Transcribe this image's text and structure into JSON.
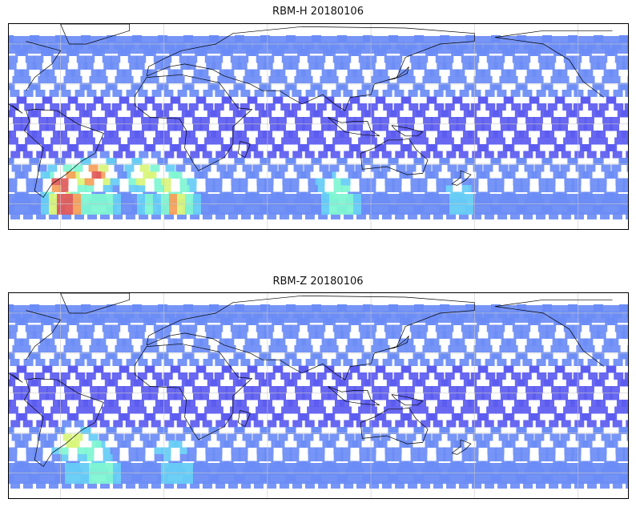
{
  "panels": [
    {
      "title": "RBM-H 20180106",
      "hot_regions": [
        {
          "lon": -58,
          "lat": -42,
          "intensity": 1.0
        },
        {
          "lon": -40,
          "lat": -36,
          "intensity": 0.9
        },
        {
          "lon": 5,
          "lat": -43,
          "intensity": 0.75
        },
        {
          "lon": -10,
          "lat": -36,
          "intensity": 0.7
        },
        {
          "lon": 100,
          "lat": -45,
          "intensity": 0.55
        },
        {
          "lon": 170,
          "lat": -45,
          "intensity": 0.35
        }
      ]
    },
    {
      "title": "RBM-Z 20180106",
      "hot_regions": [
        {
          "lon": -52,
          "lat": -35,
          "intensity": 0.7
        },
        {
          "lon": -40,
          "lat": -42,
          "intensity": 0.55
        },
        {
          "lon": 5,
          "lat": -40,
          "intensity": 0.45
        }
      ]
    }
  ],
  "colormap": [
    "#5b5bf0",
    "#6b8cf5",
    "#66ccf5",
    "#7ff5d2",
    "#d8f57a",
    "#f5a05a",
    "#e05a5a"
  ],
  "coastline_color": "#000000",
  "gridline_color": "#c8c8c8"
}
